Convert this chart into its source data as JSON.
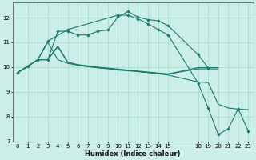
{
  "xlabel": "Humidex (Indice chaleur)",
  "background_color": "#cceee8",
  "grid_color": "#aaddcc",
  "line_color": "#1a7a6e",
  "xlim": [
    -0.5,
    23.5
  ],
  "ylim": [
    7,
    12.6
  ],
  "yticks": [
    7,
    8,
    9,
    10,
    11,
    12
  ],
  "xticks": [
    0,
    1,
    2,
    3,
    4,
    5,
    6,
    7,
    8,
    9,
    10,
    11,
    12,
    13,
    14,
    15,
    18,
    19,
    20,
    21,
    22,
    23
  ],
  "line1_x": [
    0,
    1,
    2,
    3,
    4,
    5,
    6,
    7,
    8,
    9,
    10,
    11,
    12,
    13,
    14,
    15,
    18,
    19
  ],
  "line1_y": [
    9.78,
    10.02,
    10.3,
    10.3,
    11.45,
    11.45,
    11.3,
    11.3,
    11.45,
    11.5,
    12.02,
    12.25,
    12.02,
    11.92,
    11.87,
    11.68,
    10.5,
    9.98
  ],
  "line2_x": [
    0,
    2,
    3,
    4,
    5,
    6,
    7,
    8,
    9,
    10,
    11,
    12,
    13,
    14,
    15,
    18,
    19,
    20,
    21,
    22,
    23
  ],
  "line2_y": [
    9.78,
    10.3,
    11.0,
    10.3,
    10.15,
    10.08,
    10.02,
    9.98,
    9.95,
    9.9,
    9.87,
    9.82,
    9.78,
    9.73,
    9.68,
    9.4,
    9.38,
    8.5,
    8.35,
    8.3,
    8.28
  ],
  "line3_x": [
    0,
    2,
    3,
    4,
    5,
    6,
    7,
    8,
    9,
    10,
    11,
    12,
    13,
    14,
    15,
    18,
    19,
    20
  ],
  "line3_y": [
    9.78,
    10.3,
    10.3,
    10.85,
    10.2,
    10.1,
    10.05,
    10.0,
    9.96,
    9.92,
    9.88,
    9.84,
    9.8,
    9.76,
    9.72,
    9.98,
    9.98,
    9.98
  ],
  "line4_x": [
    0,
    2,
    3,
    4,
    5,
    6,
    7,
    8,
    9,
    10,
    11,
    12,
    13,
    14,
    15,
    18,
    19,
    20
  ],
  "line4_y": [
    9.78,
    10.3,
    10.3,
    10.82,
    10.18,
    10.08,
    10.02,
    9.97,
    9.93,
    9.88,
    9.85,
    9.82,
    9.78,
    9.75,
    9.72,
    9.93,
    9.93,
    9.93
  ],
  "line5_x": [
    0,
    2,
    3,
    5,
    10,
    11,
    12,
    13,
    14,
    15,
    18,
    19,
    20,
    21,
    22,
    23
  ],
  "line5_y": [
    9.78,
    10.3,
    11.05,
    11.52,
    12.1,
    12.1,
    11.95,
    11.75,
    11.52,
    11.3,
    9.35,
    8.35,
    7.28,
    7.5,
    8.32,
    7.42
  ]
}
